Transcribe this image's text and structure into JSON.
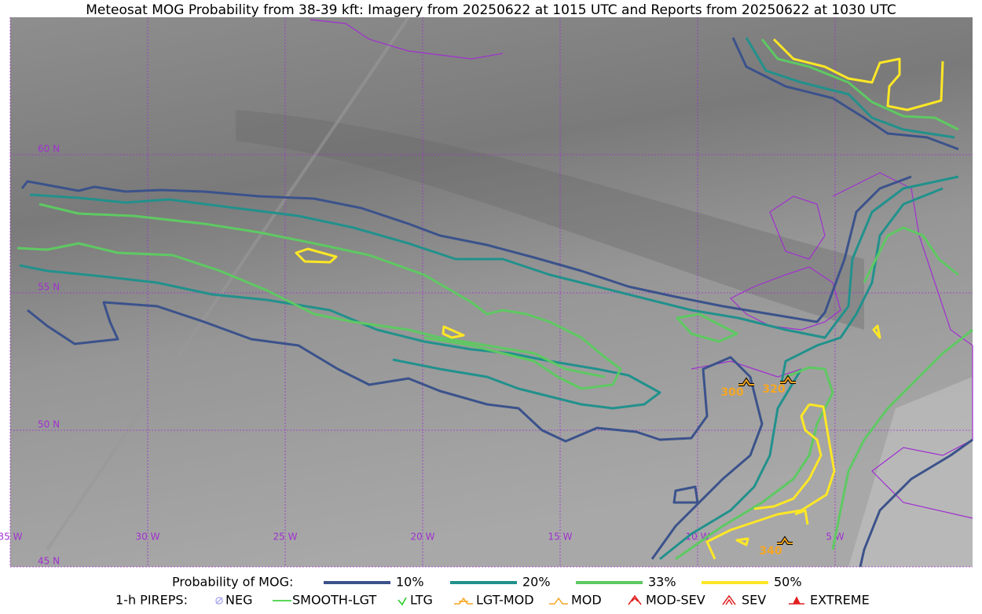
{
  "title": "Meteosat MOG Probability from 38-39 kft: Imagery from 20250622 at 1015 UTC and Reports from 20250622 at 1030 UTC",
  "grid": {
    "lat_labels": [
      "60 N",
      "55 N",
      "50 N",
      "45 N"
    ],
    "lon_labels": [
      "35 W",
      "30 W",
      "25 W",
      "20 W",
      "15 W",
      "10 W",
      "5 W"
    ],
    "color": "#a030d0"
  },
  "pireps": [
    {
      "label": "300"
    },
    {
      "label": "320"
    },
    {
      "label": "340"
    }
  ],
  "legend": {
    "mog_title": "Probability of MOG:",
    "mog_levels": [
      {
        "label": "10%",
        "color": "#3b528b"
      },
      {
        "label": "20%",
        "color": "#21918c"
      },
      {
        "label": "33%",
        "color": "#5ec962"
      },
      {
        "label": "50%",
        "color": "#fde725"
      }
    ],
    "pirep_title": "1-h PIREPS:",
    "pirep_types": [
      {
        "label": "NEG",
        "color": "#b0b0f0"
      },
      {
        "label": "SMOOTH-LGT",
        "color": "#22cc22"
      },
      {
        "label": "LTG",
        "color": "#22cc22"
      },
      {
        "label": "LGT-MOD",
        "color": "#f5a623"
      },
      {
        "label": "MOD",
        "color": "#f5a623"
      },
      {
        "label": "MOD-SEV",
        "color": "#e02020"
      },
      {
        "label": "SEV",
        "color": "#e02020"
      },
      {
        "label": "EXTREME",
        "color": "#e02020"
      }
    ]
  }
}
